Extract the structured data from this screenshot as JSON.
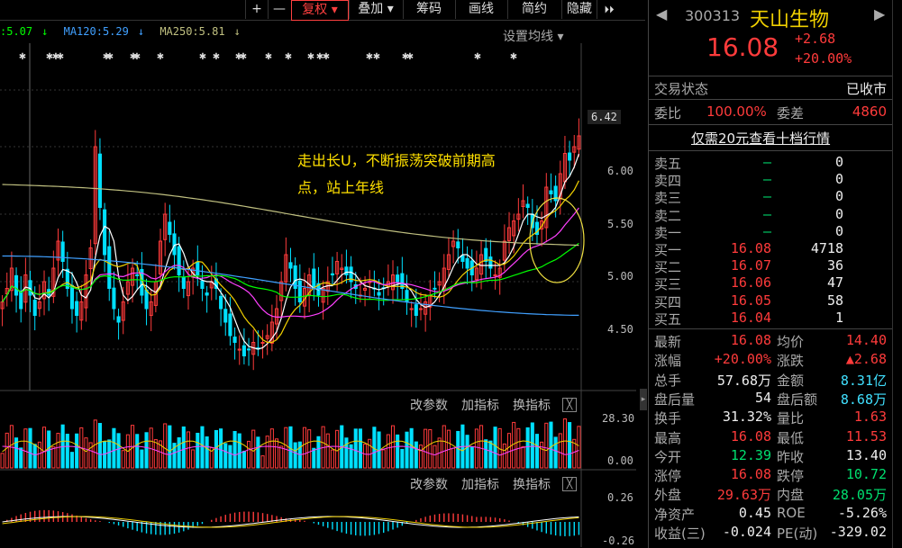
{
  "toolbar": {
    "plus": "+",
    "minus": "—",
    "restore": "复权",
    "overlay": "叠加",
    "chips": "筹码",
    "draw": "画线",
    "brief": "简约",
    "hide": "隐藏",
    "more": "⏵⏵"
  },
  "ma_legend": {
    "ma60": ":5.07",
    "ma120": "MA120:5.29",
    "ma250": "MA250:5.81",
    "setting": "设置均线"
  },
  "price_axis": [
    "6.42",
    "6.00",
    "5.50",
    "5.00",
    "4.50"
  ],
  "annotation": {
    "line1": "走出长U，不断振荡突破前期高",
    "line2": "点，站上年线"
  },
  "volume_panel": {
    "params": "改参数",
    "add": "加指标",
    "switch": "换指标",
    "close": "╳",
    "axis_top": "28.30",
    "axis_bottom": "0.00"
  },
  "macd_panel": {
    "params": "改参数",
    "add": "加指标",
    "switch": "换指标",
    "close": "╳",
    "axis_top": "0.26",
    "axis_bottom": "-0.26"
  },
  "quote": {
    "code": "300313",
    "name": "天山生物",
    "price": "16.08",
    "change": "+2.68",
    "change_pct": "+20.00%",
    "status_label": "交易状态",
    "status_value": "已收市",
    "weibi_label": "委比",
    "weibi_value": "100.00%",
    "weicha_label": "委差",
    "weicha_value": "4860",
    "promo": "仅需20元查看十档行情",
    "asks": [
      {
        "label": "卖五",
        "price": "—",
        "vol": "0"
      },
      {
        "label": "卖四",
        "price": "—",
        "vol": "0"
      },
      {
        "label": "卖三",
        "price": "—",
        "vol": "0"
      },
      {
        "label": "卖二",
        "price": "—",
        "vol": "0"
      },
      {
        "label": "卖一",
        "price": "—",
        "vol": "0"
      }
    ],
    "bids": [
      {
        "label": "买一",
        "price": "16.08",
        "vol": "4718"
      },
      {
        "label": "买二",
        "price": "16.07",
        "vol": "36"
      },
      {
        "label": "买三",
        "price": "16.06",
        "vol": "47"
      },
      {
        "label": "买四",
        "price": "16.05",
        "vol": "58"
      },
      {
        "label": "买五",
        "price": "16.04",
        "vol": "1"
      }
    ],
    "stats": [
      {
        "l1": "最新",
        "v1": "16.08",
        "c1": "red",
        "l2": "均价",
        "v2": "14.40",
        "c2": "red"
      },
      {
        "l1": "涨幅",
        "v1": "+20.00%",
        "c1": "red",
        "l2": "涨跌",
        "v2": "▲2.68",
        "c2": "red"
      },
      {
        "l1": "总手",
        "v1": "57.68万",
        "c1": "white",
        "l2": "金额",
        "v2": "8.31亿",
        "c2": "cyan"
      },
      {
        "l1": "盘后量",
        "v1": "54",
        "c1": "white",
        "l2": "盘后额",
        "v2": "8.68万",
        "c2": "cyan"
      },
      {
        "l1": "换手",
        "v1": "31.32%",
        "c1": "white",
        "l2": "量比",
        "v2": "1.63",
        "c2": "red"
      },
      {
        "l1": "最高",
        "v1": "16.08",
        "c1": "red",
        "l2": "最低",
        "v2": "11.53",
        "c2": "red"
      },
      {
        "l1": "今开",
        "v1": "12.39",
        "c1": "green",
        "l2": "昨收",
        "v2": "13.40",
        "c2": "white"
      },
      {
        "l1": "涨停",
        "v1": "16.08",
        "c1": "red",
        "l2": "跌停",
        "v2": "10.72",
        "c2": "green"
      },
      {
        "l1": "外盘",
        "v1": "29.63万",
        "c1": "red",
        "l2": "内盘",
        "v2": "28.05万",
        "c2": "green"
      },
      {
        "l1": "净资产",
        "v1": "0.45",
        "c1": "white",
        "l2": "ROE",
        "v2": "-5.26%",
        "c2": "white"
      },
      {
        "l1": "收益(三)",
        "v1": "-0.024",
        "c1": "white",
        "l2": "PE(动)",
        "v2": "-329.02",
        "c2": "white"
      }
    ]
  },
  "colors": {
    "up": "#ff3b3b",
    "down": "#00e0ff",
    "ma5": "#ffffff",
    "ma10": "#f0d000",
    "ma20": "#ff40ff",
    "ma60": "#00ff00",
    "ma120": "#40a0ff",
    "ma250": "#c0c080"
  },
  "chart_data": {
    "type": "candlestick",
    "title": "300313 天山生物",
    "ylim": [
      4.2,
      6.5
    ],
    "yticks": [
      6.42,
      6.0,
      5.5,
      5.0,
      4.5
    ],
    "closes": [
      4.85,
      4.95,
      5.1,
      4.9,
      4.8,
      5.05,
      4.9,
      4.75,
      4.85,
      5.0,
      4.9,
      5.1,
      5.3,
      5.15,
      4.95,
      4.8,
      4.75,
      4.85,
      5.05,
      5.25,
      6.0,
      5.55,
      5.2,
      4.95,
      4.8,
      4.7,
      4.85,
      5.0,
      5.1,
      5.05,
      4.9,
      4.8,
      4.85,
      5.0,
      5.3,
      5.5,
      5.35,
      5.2,
      5.05,
      4.95,
      5.0,
      5.1,
      5.05,
      4.95,
      4.9,
      5.0,
      4.95,
      4.8,
      4.7,
      4.6,
      4.55,
      4.5,
      4.45,
      4.5,
      4.55,
      4.5,
      4.55,
      4.6,
      4.7,
      4.8,
      5.0,
      5.2,
      5.1,
      4.95,
      4.85,
      4.95,
      5.05,
      4.95,
      4.9,
      4.95,
      5.0,
      5.05,
      5.15,
      5.1,
      5.05,
      5.0,
      4.95,
      4.9,
      4.95,
      5.0,
      4.95,
      4.9,
      4.95,
      5.0,
      5.05,
      5.0,
      4.95,
      4.85,
      4.8,
      4.75,
      4.8,
      4.85,
      4.9,
      4.95,
      5.0,
      5.1,
      5.2,
      5.3,
      5.25,
      5.15,
      5.1,
      5.05,
      5.1,
      5.2,
      5.15,
      5.1,
      5.05,
      5.1,
      5.3,
      5.4,
      5.45,
      5.5,
      5.6,
      5.55,
      5.4,
      5.35,
      5.45,
      5.7,
      5.65,
      5.6,
      5.8,
      5.95,
      5.9,
      6.0,
      6.08
    ]
  }
}
